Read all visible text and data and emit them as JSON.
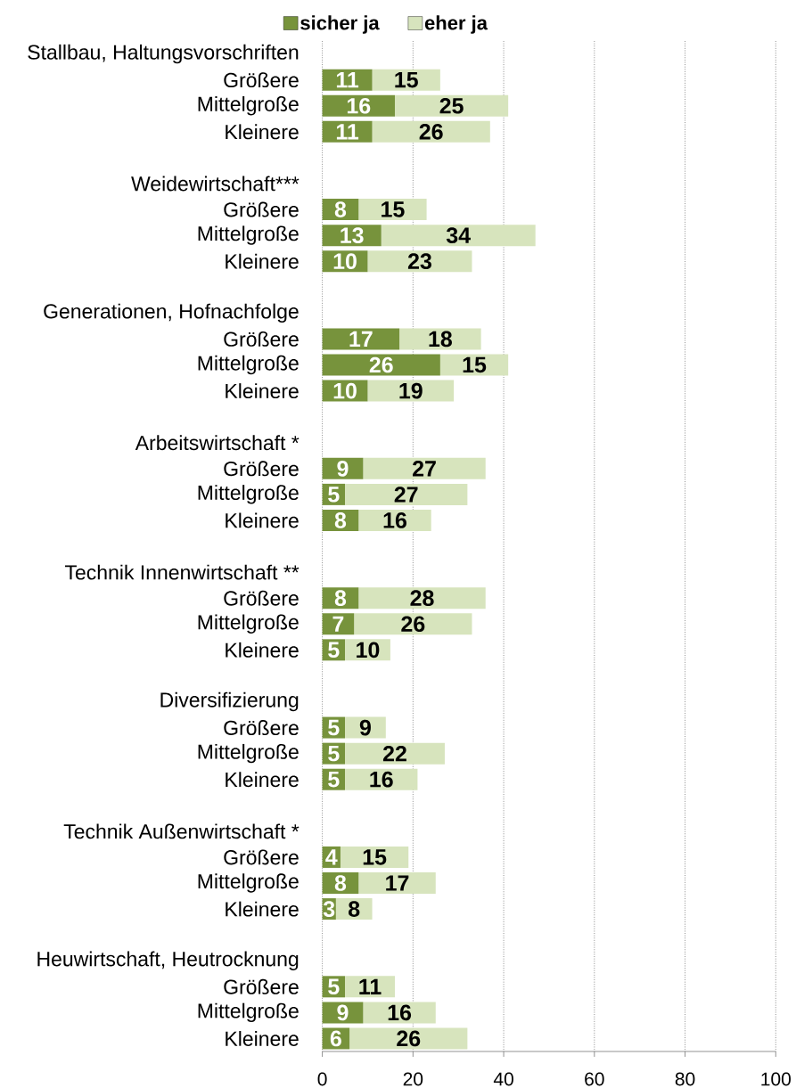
{
  "chart_data": {
    "type": "bar",
    "orientation": "horizontal",
    "stacked": true,
    "categories": [
      "Stallbau, Haltungsvorschriften",
      "Größere",
      "Mittelgroße",
      "Kleinere",
      null,
      "Weidewirtschaft***",
      "Größere",
      "Mittelgroße",
      "Kleinere",
      null,
      "Generationen, Hofnachfolge",
      "Größere",
      "Mittelgroße",
      "Kleinere",
      null,
      "Arbeitswirtschaft *",
      "Größere",
      "Mittelgroße",
      "Kleinere",
      null,
      "Technik Innenwirtschaft **",
      "Größere",
      "Mittelgroße",
      "Kleinere",
      null,
      "Diversifizierung",
      "Größere",
      "Mittelgroße",
      "Kleinere",
      null,
      "Technik Außenwirtschaft *",
      "Größere",
      "Mittelgroße",
      "Kleinere",
      null,
      "Heuwirtschaft, Heutrocknung",
      "Größere",
      "Mittelgroße",
      "Kleinere"
    ],
    "series": [
      {
        "name": "sicher ja",
        "color": "#77933c",
        "values": [
          null,
          11,
          16,
          11,
          null,
          null,
          8,
          13,
          10,
          null,
          null,
          17,
          26,
          10,
          null,
          null,
          9,
          5,
          8,
          null,
          null,
          8,
          7,
          5,
          null,
          null,
          5,
          5,
          5,
          null,
          null,
          4,
          8,
          3,
          null,
          null,
          5,
          9,
          6
        ]
      },
      {
        "name": "eher ja",
        "color": "#d7e4bd",
        "values": [
          null,
          15,
          25,
          26,
          null,
          null,
          15,
          34,
          23,
          null,
          null,
          18,
          15,
          19,
          null,
          null,
          27,
          27,
          16,
          null,
          null,
          28,
          26,
          10,
          null,
          null,
          9,
          22,
          16,
          null,
          null,
          15,
          17,
          8,
          null,
          null,
          11,
          16,
          26
        ]
      }
    ],
    "xlim": [
      0,
      100
    ],
    "xticks": [
      0,
      20,
      40,
      60,
      80,
      100
    ],
    "grid": "x",
    "legend": "top",
    "data_labels": true
  }
}
